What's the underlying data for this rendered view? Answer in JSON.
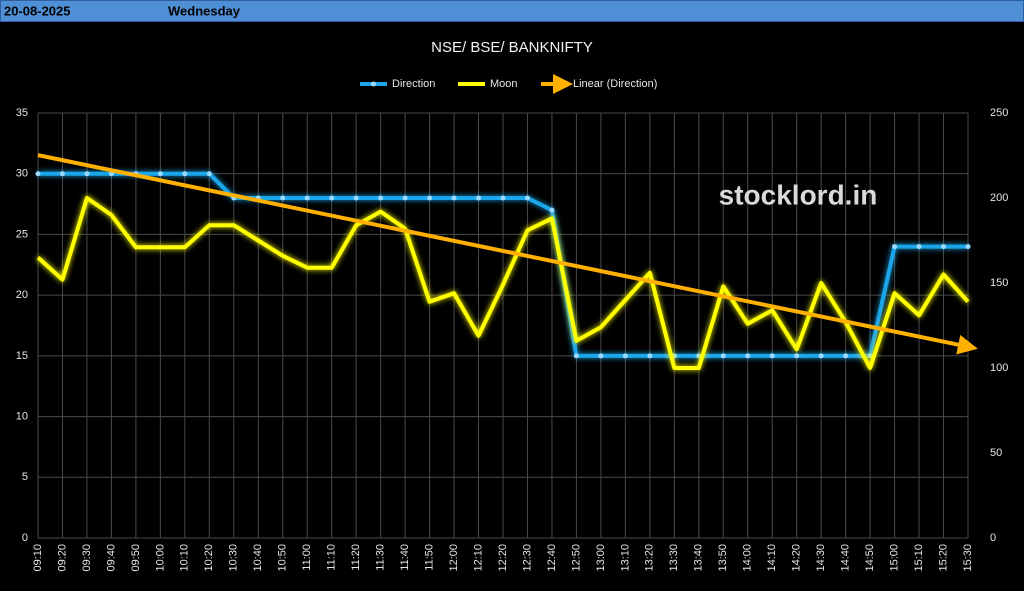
{
  "header": {
    "date": "20-08-2025",
    "day": "Wednesday"
  },
  "chart_data": {
    "type": "line",
    "title": "NSE/ BSE/ BANKNIFTY",
    "categories": [
      "09:10",
      "09:20",
      "09:30",
      "09:40",
      "09:50",
      "10:00",
      "10:10",
      "10:20",
      "10:30",
      "10:40",
      "10:50",
      "11:00",
      "11:10",
      "11:20",
      "11:30",
      "11:40",
      "11:50",
      "12:00",
      "12:10",
      "12:20",
      "12:30",
      "12:40",
      "12:50",
      "13:00",
      "13:10",
      "13:20",
      "13:30",
      "13:40",
      "13:50",
      "14:00",
      "14:10",
      "14:20",
      "14:30",
      "14:40",
      "14:50",
      "15:00",
      "15:10",
      "15:20",
      "15:30"
    ],
    "series": [
      {
        "name": "Direction",
        "color": "#1fa6ea",
        "axis": "y",
        "markers": true,
        "values": [
          30,
          30,
          30,
          30,
          30,
          30,
          30,
          30,
          28,
          28,
          28,
          28,
          28,
          28,
          28,
          28,
          28,
          28,
          28,
          28,
          28,
          27,
          15,
          15,
          15,
          15,
          15,
          15,
          15,
          15,
          15,
          15,
          15,
          15,
          15,
          24,
          24,
          24,
          24
        ]
      },
      {
        "name": "Moon",
        "color": "#ffff00",
        "axis": "y2",
        "markers": false,
        "values": [
          165,
          152,
          200,
          190,
          171,
          171,
          171,
          184,
          184,
          175,
          166,
          159,
          159,
          184,
          192,
          182,
          139,
          144,
          119,
          149,
          181,
          188,
          116,
          124,
          140,
          156,
          100,
          100,
          148,
          126,
          134,
          111,
          150,
          127,
          100,
          144,
          131,
          155,
          139
        ]
      }
    ],
    "trendline": {
      "name": "Linear (Direction)",
      "color": "#ffb000",
      "of": 0
    },
    "annotation": "stocklord.in",
    "ylim": [
      0,
      35
    ],
    "yticks": [
      0,
      5,
      10,
      15,
      20,
      25,
      30,
      35
    ],
    "y2lim": [
      0,
      250
    ],
    "y2ticks": [
      0,
      50,
      100,
      150,
      200,
      250
    ],
    "grid": true,
    "legend": "top"
  }
}
